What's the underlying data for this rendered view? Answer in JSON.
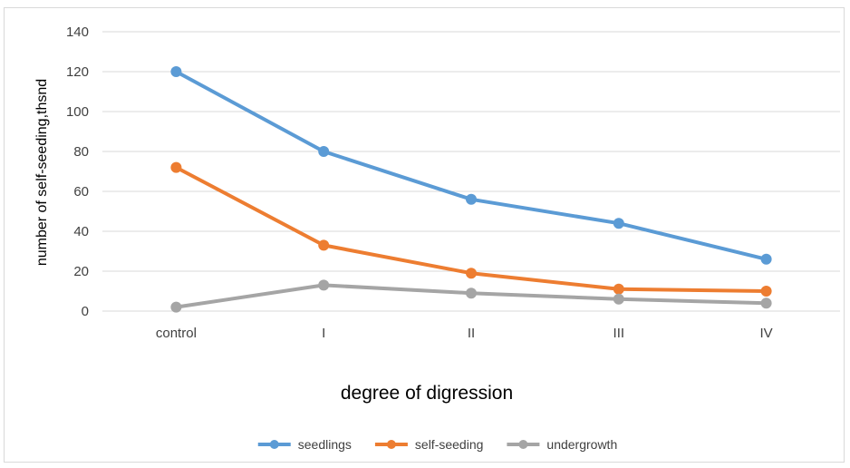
{
  "chart_data": {
    "type": "line",
    "title": "",
    "xlabel": "degree of digression",
    "ylabel": "number of self-seeding,thsnd",
    "categories": [
      "control",
      "I",
      "II",
      "III",
      "IV"
    ],
    "ylim": [
      0,
      140
    ],
    "yticks": [
      "0",
      "20",
      "40",
      "60",
      "80",
      "100",
      "120",
      "140"
    ],
    "grid": true,
    "legend_position": "bottom",
    "series": [
      {
        "name": "seedlings",
        "color": "#5b9bd5",
        "values": [
          120,
          80,
          56,
          44,
          26
        ]
      },
      {
        "name": "self-seeding",
        "color": "#ed7d31",
        "values": [
          72,
          33,
          19,
          11,
          10
        ]
      },
      {
        "name": "undergrowth",
        "color": "#a5a5a5",
        "values": [
          2,
          13,
          9,
          6,
          4
        ]
      }
    ]
  }
}
